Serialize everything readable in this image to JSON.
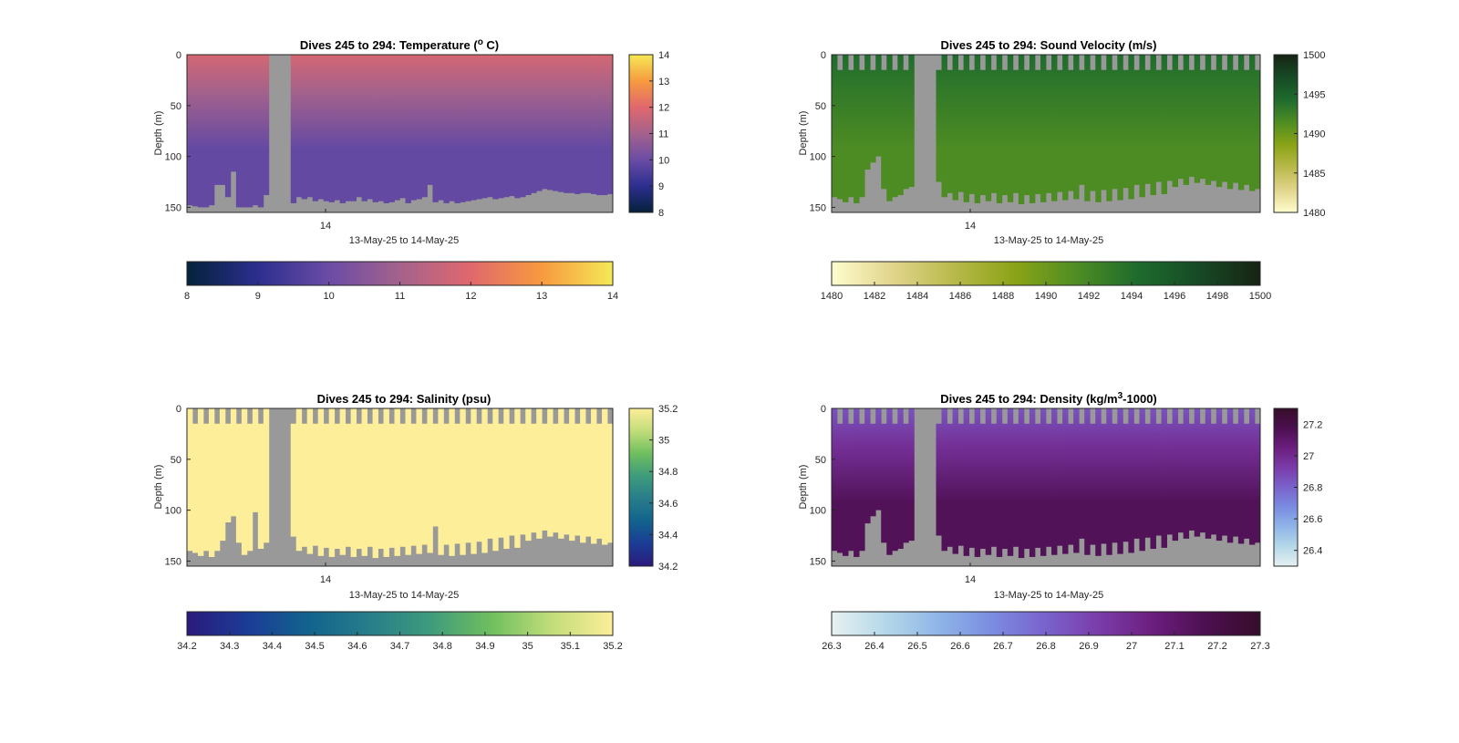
{
  "figure": {
    "background": "#ffffff",
    "missing_color": "#999999"
  },
  "chart_data": [
    {
      "type": "heatmap",
      "variable": "temperature",
      "title_prefix": "Dives 245 to 294: Temperature (",
      "title_sup": "o",
      "title_suffix": " C)",
      "xlabel": "13-May-25 to 14-May-25",
      "ylabel": "Depth (m)",
      "x_tick_labels": [
        "14"
      ],
      "y_tick_labels": [
        "0",
        "50",
        "100",
        "150"
      ],
      "ylim": [
        0,
        155
      ],
      "y_ticks": [
        0,
        50,
        100,
        150
      ],
      "colormap": "thermal",
      "colormap_stops": [
        "#04223a",
        "#2c2e8f",
        "#6a4ca5",
        "#a4628c",
        "#e0686d",
        "#f79a3f",
        "#f5e955"
      ],
      "colorbar_limits": [
        8,
        14
      ],
      "side_colorbar_ticks": [
        8,
        9,
        10,
        11,
        12,
        13,
        14
      ],
      "side_colorbar_tick_labels": [
        "8",
        "9",
        "10",
        "11",
        "12",
        "13",
        "14"
      ],
      "bottom_colorbar_ticks": [
        8,
        9,
        10,
        11,
        12,
        13,
        14
      ],
      "bottom_colorbar_tick_labels": [
        "8",
        "9",
        "10",
        "11",
        "12",
        "13",
        "14"
      ],
      "surface_value": 11.8,
      "deep_value": 9.9,
      "bottom_depth_m": [
        148,
        149,
        150,
        150,
        148,
        128,
        128,
        140,
        115,
        150,
        150,
        150,
        148,
        150,
        138,
        0,
        0,
        0,
        0,
        146,
        140,
        142,
        140,
        144,
        142,
        144,
        145,
        143,
        146,
        144,
        144,
        140,
        144,
        142,
        145,
        144,
        146,
        145,
        143,
        141,
        146,
        143,
        142,
        140,
        128,
        145,
        143,
        146,
        144,
        146,
        145,
        144,
        143,
        142,
        141,
        140,
        142,
        141,
        140,
        139,
        141,
        140,
        138,
        136,
        134,
        132,
        133,
        134,
        135,
        136,
        136,
        137,
        136,
        136,
        137,
        138,
        138,
        137
      ]
    },
    {
      "type": "heatmap",
      "variable": "sound_velocity",
      "title_prefix": "Dives 245 to 294: Sound Velocity (m/s)",
      "title_sup": "",
      "title_suffix": "",
      "xlabel": "13-May-25 to 14-May-25",
      "ylabel": "Depth (m)",
      "x_tick_labels": [
        "14"
      ],
      "y_tick_labels": [
        "0",
        "50",
        "100",
        "150"
      ],
      "ylim": [
        0,
        155
      ],
      "y_ticks": [
        0,
        50,
        100,
        150
      ],
      "colormap": "speed",
      "colormap_stops": [
        "#fffdcd",
        "#e1d48c",
        "#b8b94a",
        "#8aa316",
        "#4e8d23",
        "#1e6b2d",
        "#164a25",
        "#172313"
      ],
      "colorbar_limits": [
        1480,
        1500
      ],
      "side_colorbar_ticks": [
        1480,
        1485,
        1490,
        1495,
        1500
      ],
      "side_colorbar_tick_labels": [
        "1480",
        "1485",
        "1490",
        "1495",
        "1500"
      ],
      "bottom_colorbar_ticks": [
        1480,
        1482,
        1484,
        1486,
        1488,
        1490,
        1492,
        1494,
        1496,
        1498,
        1500
      ],
      "bottom_colorbar_tick_labels": [
        "1480",
        "1482",
        "1484",
        "1486",
        "1488",
        "1490",
        "1492",
        "1494",
        "1496",
        "1498",
        "1500"
      ],
      "surface_value": 1494.2,
      "deep_value": 1491.5,
      "top_gap_m": [
        0,
        15,
        0,
        15,
        0,
        15,
        0,
        15,
        0,
        15,
        0,
        15,
        0,
        15,
        0,
        15,
        0,
        15,
        0,
        15,
        0,
        15,
        0,
        15,
        0,
        15,
        0,
        15,
        0,
        15,
        0,
        15,
        0,
        15,
        0,
        15,
        0,
        15,
        0,
        15,
        0,
        15,
        0,
        15,
        0,
        15,
        0,
        15,
        0,
        15,
        0,
        15,
        0,
        15,
        0,
        15,
        0,
        15,
        0,
        15,
        0,
        15,
        0,
        15,
        0,
        15,
        0,
        15,
        0,
        15,
        0,
        15,
        0,
        15,
        0,
        15,
        0,
        15
      ],
      "bottom_depth_m": [
        140,
        142,
        145,
        140,
        146,
        140,
        113,
        106,
        100,
        132,
        144,
        140,
        138,
        132,
        130,
        0,
        0,
        0,
        0,
        125,
        140,
        136,
        143,
        135,
        145,
        137,
        146,
        138,
        144,
        136,
        146,
        138,
        145,
        136,
        147,
        138,
        146,
        137,
        145,
        136,
        144,
        135,
        143,
        134,
        142,
        128,
        144,
        134,
        145,
        133,
        144,
        132,
        143,
        131,
        142,
        128,
        140,
        127,
        138,
        125,
        137,
        124,
        130,
        122,
        128,
        120,
        126,
        122,
        128,
        124,
        130,
        125,
        132,
        126,
        133,
        128,
        134,
        132
      ]
    },
    {
      "type": "heatmap",
      "variable": "salinity",
      "title_prefix": "Dives 245 to 294: Salinity (psu)",
      "title_sup": "",
      "title_suffix": "",
      "xlabel": "13-May-25 to 14-May-25",
      "ylabel": "Depth (m)",
      "x_tick_labels": [
        "14"
      ],
      "y_tick_labels": [
        "0",
        "50",
        "100",
        "150"
      ],
      "ylim": [
        0,
        155
      ],
      "y_ticks": [
        0,
        50,
        100,
        150
      ],
      "colormap": "haline",
      "colormap_stops": [
        "#2a1a7c",
        "#1b3c96",
        "#12638d",
        "#287d8a",
        "#3e9b7c",
        "#6fbf5f",
        "#c2dd7a",
        "#fdee99"
      ],
      "colorbar_limits": [
        34.2,
        35.2
      ],
      "side_colorbar_ticks": [
        34.2,
        34.4,
        34.6,
        34.8,
        35,
        35.2
      ],
      "side_colorbar_tick_labels": [
        "34.2",
        "34.4",
        "34.6",
        "34.8",
        "35",
        "35.2"
      ],
      "bottom_colorbar_ticks": [
        34.2,
        34.3,
        34.4,
        34.5,
        34.6,
        34.7,
        34.8,
        34.9,
        35,
        35.1,
        35.2
      ],
      "bottom_colorbar_tick_labels": [
        "34.2",
        "34.3",
        "34.4",
        "34.5",
        "34.6",
        "34.7",
        "34.8",
        "34.9",
        "35",
        "35.1",
        "35.2"
      ],
      "surface_value": 35.2,
      "deep_value": 35.2,
      "top_gap_m": [
        0,
        15,
        0,
        15,
        0,
        15,
        0,
        15,
        0,
        15,
        0,
        15,
        0,
        15,
        0,
        15,
        0,
        15,
        0,
        15,
        0,
        15,
        0,
        15,
        0,
        15,
        0,
        15,
        0,
        15,
        0,
        15,
        0,
        15,
        0,
        15,
        0,
        15,
        0,
        15,
        0,
        15,
        0,
        15,
        0,
        15,
        0,
        15,
        0,
        15,
        0,
        15,
        0,
        15,
        0,
        15,
        0,
        15,
        0,
        15,
        0,
        15,
        0,
        15,
        0,
        15,
        0,
        15,
        0,
        15,
        0,
        15,
        0,
        15,
        0,
        15,
        0,
        15
      ],
      "bottom_depth_m": [
        140,
        142,
        145,
        140,
        146,
        140,
        130,
        112,
        106,
        132,
        144,
        140,
        102,
        138,
        132,
        0,
        0,
        0,
        0,
        126,
        140,
        136,
        143,
        135,
        145,
        137,
        146,
        138,
        144,
        136,
        146,
        138,
        145,
        136,
        147,
        138,
        146,
        137,
        145,
        136,
        144,
        135,
        143,
        134,
        142,
        116,
        144,
        134,
        145,
        133,
        144,
        132,
        143,
        131,
        142,
        128,
        140,
        127,
        138,
        125,
        137,
        124,
        130,
        122,
        128,
        120,
        126,
        122,
        128,
        124,
        130,
        125,
        132,
        126,
        133,
        128,
        134,
        132
      ]
    },
    {
      "type": "heatmap",
      "variable": "density",
      "title_prefix": "Dives 245 to 294: Density (kg/m",
      "title_sup": "3",
      "title_suffix": "-1000)",
      "xlabel": "13-May-25 to 14-May-25",
      "ylabel": "Depth (m)",
      "x_tick_labels": [
        "14"
      ],
      "y_tick_labels": [
        "0",
        "50",
        "100",
        "150"
      ],
      "ylim": [
        0,
        155
      ],
      "y_ticks": [
        0,
        50,
        100,
        150
      ],
      "colormap": "dense",
      "colormap_stops": [
        "#e6f1f1",
        "#b4d8e8",
        "#8fb5e8",
        "#7a8ce0",
        "#7a62cc",
        "#7a3ca9",
        "#6b1e7e",
        "#4b0f4f",
        "#360d29"
      ],
      "colorbar_limits": [
        26.3,
        27.3
      ],
      "side_colorbar_ticks": [
        26.4,
        26.6,
        26.8,
        27,
        27.2
      ],
      "side_colorbar_tick_labels": [
        "26.4",
        "26.6",
        "26.8",
        "27",
        "27.2"
      ],
      "bottom_colorbar_ticks": [
        26.3,
        26.4,
        26.5,
        26.6,
        26.7,
        26.8,
        26.9,
        27,
        27.1,
        27.2,
        27.3
      ],
      "bottom_colorbar_tick_labels": [
        "26.3",
        "26.4",
        "26.5",
        "26.6",
        "26.7",
        "26.8",
        "26.9",
        "27",
        "27.1",
        "27.2",
        "27.3"
      ],
      "surface_value": 26.85,
      "deep_value": 27.15,
      "top_gap_m": [
        0,
        15,
        0,
        15,
        0,
        15,
        0,
        15,
        0,
        15,
        0,
        15,
        0,
        15,
        0,
        15,
        0,
        15,
        0,
        15,
        0,
        15,
        0,
        15,
        0,
        15,
        0,
        15,
        0,
        15,
        0,
        15,
        0,
        15,
        0,
        15,
        0,
        15,
        0,
        15,
        0,
        15,
        0,
        15,
        0,
        15,
        0,
        15,
        0,
        15,
        0,
        15,
        0,
        15,
        0,
        15,
        0,
        15,
        0,
        15,
        0,
        15,
        0,
        15,
        0,
        15,
        0,
        15,
        0,
        15,
        0,
        15,
        0,
        15,
        0,
        15,
        0,
        15
      ],
      "bottom_depth_m": [
        140,
        142,
        145,
        140,
        146,
        140,
        113,
        106,
        100,
        132,
        144,
        140,
        138,
        132,
        130,
        0,
        0,
        0,
        0,
        125,
        140,
        136,
        143,
        135,
        145,
        137,
        146,
        138,
        144,
        136,
        146,
        138,
        145,
        136,
        147,
        138,
        146,
        137,
        145,
        136,
        144,
        135,
        143,
        134,
        142,
        128,
        144,
        134,
        145,
        133,
        144,
        132,
        143,
        131,
        142,
        128,
        140,
        127,
        138,
        125,
        137,
        124,
        130,
        122,
        128,
        120,
        126,
        122,
        128,
        124,
        130,
        125,
        132,
        126,
        133,
        128,
        134,
        132
      ]
    }
  ]
}
